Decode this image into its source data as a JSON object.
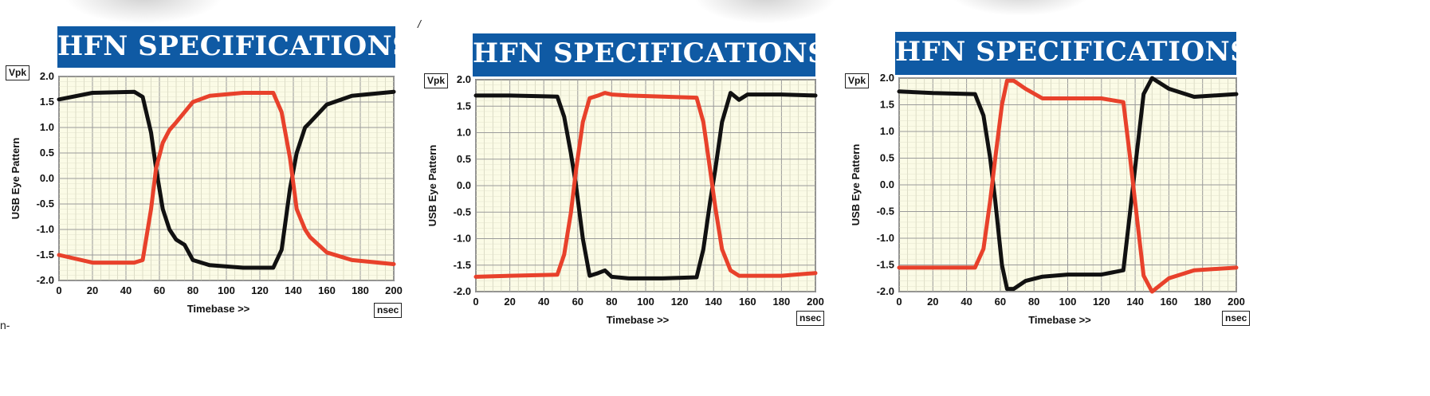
{
  "stray_marks": {
    "left": "n-",
    "mid": "/"
  },
  "chart_data": [
    {
      "type": "line",
      "title": "HFN SPECIFICATIONS",
      "xlabel": "Timebase >>",
      "ylabel": "USB Eye Pattern",
      "y_unit": "Vpk",
      "x_unit": "nsec",
      "xlim": [
        0,
        200
      ],
      "ylim": [
        -2.0,
        2.0
      ],
      "xticks": [
        "0",
        "20",
        "40",
        "60",
        "80",
        "100",
        "120",
        "140",
        "160",
        "180",
        "200"
      ],
      "yticks": [
        "2.0",
        "1.5",
        "1.0",
        "0.5",
        "0.0",
        "-0.5",
        "-1.0",
        "-1.5",
        "-2.0"
      ],
      "grid": true,
      "series": [
        {
          "color": "#111111",
          "x": [
            0,
            20,
            45,
            50,
            55,
            58,
            62,
            66,
            70,
            75,
            80,
            90,
            110,
            128,
            133,
            138,
            142,
            147,
            150,
            160,
            175,
            200
          ],
          "y": [
            1.55,
            1.68,
            1.7,
            1.6,
            0.9,
            0.2,
            -0.6,
            -1.0,
            -1.2,
            -1.3,
            -1.6,
            -1.7,
            -1.75,
            -1.75,
            -1.4,
            -0.2,
            0.5,
            1.0,
            1.1,
            1.45,
            1.62,
            1.7
          ]
        },
        {
          "color": "#e8412b",
          "x": [
            0,
            20,
            45,
            50,
            55,
            58,
            62,
            66,
            70,
            75,
            80,
            90,
            110,
            128,
            133,
            138,
            142,
            147,
            150,
            160,
            175,
            200
          ],
          "y": [
            -1.5,
            -1.65,
            -1.65,
            -1.6,
            -0.6,
            0.2,
            0.7,
            0.95,
            1.1,
            1.3,
            1.5,
            1.62,
            1.68,
            1.68,
            1.3,
            0.4,
            -0.6,
            -1.0,
            -1.15,
            -1.45,
            -1.6,
            -1.68
          ]
        }
      ]
    },
    {
      "type": "line",
      "title": "HFN SPECIFICATIONS",
      "xlabel": "Timebase >>",
      "ylabel": "USB Eye Pattern",
      "y_unit": "Vpk",
      "x_unit": "nsec",
      "xlim": [
        0,
        200
      ],
      "ylim": [
        -2.0,
        2.0
      ],
      "xticks": [
        "0",
        "20",
        "40",
        "60",
        "80",
        "100",
        "120",
        "140",
        "160",
        "180",
        "200"
      ],
      "yticks": [
        "2.0",
        "1.5",
        "1.0",
        "0.5",
        "0.0",
        "-0.5",
        "-1.0",
        "-1.5",
        "-2.0"
      ],
      "grid": true,
      "series": [
        {
          "color": "#111111",
          "x": [
            0,
            20,
            48,
            52,
            56,
            59,
            63,
            67,
            72,
            76,
            80,
            90,
            110,
            130,
            134,
            138,
            141,
            145,
            150,
            155,
            160,
            180,
            200
          ],
          "y": [
            1.7,
            1.7,
            1.68,
            1.3,
            0.6,
            0.0,
            -1.0,
            -1.7,
            -1.65,
            -1.6,
            -1.72,
            -1.75,
            -1.75,
            -1.73,
            -1.2,
            -0.3,
            0.3,
            1.2,
            1.75,
            1.62,
            1.72,
            1.72,
            1.7
          ]
        },
        {
          "color": "#e8412b",
          "x": [
            0,
            20,
            48,
            52,
            56,
            59,
            63,
            67,
            72,
            76,
            80,
            90,
            110,
            130,
            134,
            138,
            141,
            145,
            150,
            155,
            160,
            180,
            200
          ],
          "y": [
            -1.72,
            -1.7,
            -1.68,
            -1.3,
            -0.5,
            0.3,
            1.2,
            1.65,
            1.7,
            1.75,
            1.72,
            1.7,
            1.68,
            1.66,
            1.2,
            0.3,
            -0.4,
            -1.2,
            -1.6,
            -1.7,
            -1.7,
            -1.7,
            -1.65
          ]
        }
      ]
    },
    {
      "type": "line",
      "title": "HFN SPECIFICATIONS",
      "xlabel": "Timebase >>",
      "ylabel": "USB Eye Pattern",
      "y_unit": "Vpk",
      "x_unit": "nsec",
      "xlim": [
        0,
        200
      ],
      "ylim": [
        -2.0,
        2.0
      ],
      "xticks": [
        "0",
        "20",
        "40",
        "60",
        "80",
        "100",
        "120",
        "140",
        "160",
        "180",
        "200"
      ],
      "yticks": [
        "2.0",
        "1.5",
        "1.0",
        "0.5",
        "0.0",
        "-0.5",
        "-1.0",
        "-1.5",
        "-2.0"
      ],
      "grid": true,
      "series": [
        {
          "color": "#111111",
          "x": [
            0,
            20,
            45,
            50,
            54,
            57,
            61,
            64,
            68,
            75,
            85,
            100,
            120,
            133,
            137,
            141,
            145,
            150,
            160,
            175,
            200
          ],
          "y": [
            1.75,
            1.72,
            1.7,
            1.3,
            0.5,
            -0.3,
            -1.5,
            -1.95,
            -1.95,
            -1.8,
            -1.72,
            -1.68,
            -1.68,
            -1.6,
            -0.5,
            0.6,
            1.7,
            2.0,
            1.8,
            1.65,
            1.7
          ]
        },
        {
          "color": "#e8412b",
          "x": [
            0,
            20,
            45,
            50,
            54,
            57,
            61,
            64,
            68,
            75,
            85,
            100,
            120,
            133,
            137,
            141,
            145,
            150,
            160,
            175,
            200
          ],
          "y": [
            -1.55,
            -1.55,
            -1.55,
            -1.2,
            -0.3,
            0.5,
            1.5,
            1.95,
            1.95,
            1.8,
            1.62,
            1.62,
            1.62,
            1.55,
            0.5,
            -0.6,
            -1.7,
            -2.0,
            -1.75,
            -1.6,
            -1.55
          ]
        }
      ]
    }
  ]
}
